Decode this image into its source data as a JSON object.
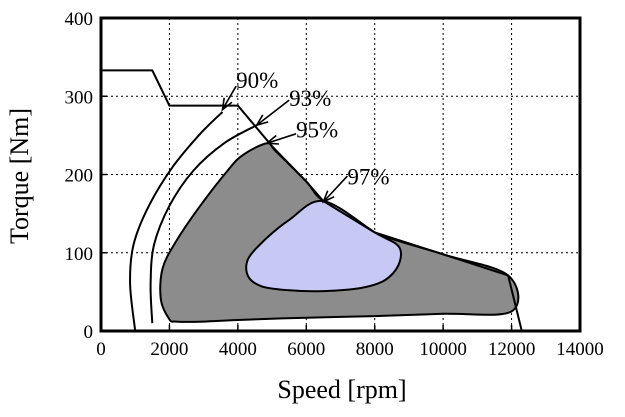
{
  "chart_data": {
    "type": "area",
    "xlabel": "Speed [rpm]",
    "ylabel": "Torque [Nm]",
    "xlim": [
      0,
      14000
    ],
    "ylim": [
      0,
      400
    ],
    "x_ticks": [
      0,
      2000,
      4000,
      6000,
      8000,
      10000,
      12000,
      14000
    ],
    "y_ticks": [
      0,
      100,
      200,
      300,
      400
    ],
    "x_tick_labels": [
      "0",
      "2000",
      "4000",
      "6000",
      "8000",
      "10000",
      "12000",
      "14000"
    ],
    "y_tick_labels": [
      "0",
      "100",
      "200",
      "300",
      "400"
    ],
    "grid": true,
    "colors": {
      "region_95": "#8c8c8c",
      "region_97": "#c8c8f5",
      "lines": "#000000"
    },
    "torque_speed_envelope": [
      [
        0,
        333
      ],
      [
        1500,
        333
      ],
      [
        2000,
        288
      ],
      [
        4000,
        288
      ],
      [
        5000,
        236
      ],
      [
        6000,
        191
      ],
      [
        6500,
        166
      ],
      [
        8000,
        126
      ],
      [
        10000,
        98
      ],
      [
        11900,
        71
      ],
      [
        12300,
        0
      ]
    ],
    "efficiency_contours": [
      {
        "label": "90%",
        "points": [
          [
            1000,
            0
          ],
          [
            850,
            60
          ],
          [
            950,
            110
          ],
          [
            1400,
            160
          ],
          [
            2100,
            210
          ],
          [
            2900,
            252
          ],
          [
            3550,
            280
          ]
        ],
        "arrow_from": [
          3950,
          313
        ],
        "arrow_to": [
          3550,
          283
        ]
      },
      {
        "label": "93%",
        "points": [
          [
            1500,
            10
          ],
          [
            1450,
            60
          ],
          [
            1550,
            110
          ],
          [
            2000,
            160
          ],
          [
            2700,
            205
          ],
          [
            3600,
            240
          ],
          [
            4550,
            263
          ]
        ],
        "arrow_from": [
          5500,
          295
        ],
        "arrow_to": [
          4550,
          263
        ]
      },
      {
        "label": "95%",
        "filled": true,
        "points": [
          [
            2000,
            15
          ],
          [
            1750,
            40
          ],
          [
            1800,
            80
          ],
          [
            2200,
            115
          ],
          [
            2900,
            160
          ],
          [
            3700,
            205
          ],
          [
            4150,
            225
          ],
          [
            4850,
            240
          ],
          [
            5100,
            230
          ],
          [
            6000,
            191
          ],
          [
            6500,
            166
          ],
          [
            8000,
            126
          ],
          [
            10000,
            98
          ],
          [
            11900,
            71
          ],
          [
            12000,
            25
          ],
          [
            10000,
            22
          ],
          [
            8000,
            19
          ],
          [
            6000,
            17
          ],
          [
            4000,
            14
          ],
          [
            3000,
            12
          ],
          [
            2200,
            12
          ]
        ],
        "arrow_from": [
          5700,
          252
        ],
        "arrow_to": [
          4850,
          240
        ]
      },
      {
        "label": "97%",
        "filled": true,
        "points": [
          [
            4300,
            92
          ],
          [
            4300,
            70
          ],
          [
            4700,
            57
          ],
          [
            5500,
            52
          ],
          [
            6500,
            51
          ],
          [
            7600,
            55
          ],
          [
            8300,
            65
          ],
          [
            8700,
            85
          ],
          [
            8700,
            108
          ],
          [
            8000,
            126
          ],
          [
            6500,
            166
          ],
          [
            5500,
            142
          ],
          [
            4800,
            117
          ]
        ],
        "arrow_from": [
          7200,
          198
        ],
        "arrow_to": [
          6500,
          165
        ]
      }
    ],
    "annotations": [
      {
        "text": "90%",
        "x": 3950,
        "y": 313
      },
      {
        "text": "93%",
        "x": 5500,
        "y": 290
      },
      {
        "text": "95%",
        "x": 5700,
        "y": 250
      },
      {
        "text": "97%",
        "x": 7200,
        "y": 190
      }
    ]
  }
}
